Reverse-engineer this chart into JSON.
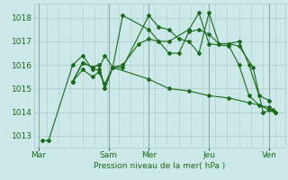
{
  "xlabel": "Pression niveau de la mer( hPa )",
  "bg_color": "#cce8e8",
  "grid_color": "#aacccc",
  "vline_color": "#88aaaa",
  "line_color": "#1a6b1a",
  "tick_label_color": "#1a6b1a",
  "axis_label_color": "#1a6b1a",
  "ylim": [
    1012.5,
    1018.6
  ],
  "yticks": [
    1013,
    1014,
    1015,
    1016,
    1017,
    1018
  ],
  "xlim": [
    -0.2,
    12.3
  ],
  "day_positions": [
    0.0,
    3.5,
    5.5,
    8.5,
    11.5
  ],
  "day_labels": [
    "Mar",
    "Sam",
    "Mer",
    "Jeu",
    "Ven"
  ],
  "vline_positions": [
    0.0,
    3.5,
    5.5,
    8.5,
    11.5
  ],
  "line1_x": [
    0.2,
    0.5,
    1.7,
    2.2,
    2.7,
    3.0,
    3.3,
    3.7,
    4.2,
    5.5,
    6.0,
    6.5,
    7.0,
    7.5,
    8.0,
    8.5,
    9.0,
    9.5,
    10.0,
    10.7,
    11.2,
    11.7
  ],
  "line1_y": [
    1012.8,
    1012.8,
    1016.0,
    1016.4,
    1015.8,
    1015.8,
    1016.4,
    1015.9,
    1015.9,
    1018.1,
    1017.6,
    1017.5,
    1017.1,
    1017.0,
    1016.5,
    1018.2,
    1016.9,
    1016.9,
    1016.8,
    1015.9,
    1014.0,
    1014.1
  ],
  "line2_x": [
    1.7,
    2.2,
    2.7,
    3.0,
    3.3,
    3.7,
    4.2,
    5.5,
    6.0,
    6.5,
    7.5,
    8.0,
    8.5,
    9.5,
    10.0,
    10.5,
    11.0,
    11.5,
    11.8
  ],
  "line2_y": [
    1015.3,
    1016.1,
    1015.9,
    1016.0,
    1015.0,
    1015.9,
    1018.1,
    1017.5,
    1017.0,
    1017.0,
    1017.5,
    1018.2,
    1016.9,
    1016.8,
    1016.0,
    1014.7,
    1014.3,
    1014.1,
    1014.0
  ],
  "line3_x": [
    1.7,
    2.2,
    2.7,
    3.0,
    3.3,
    3.7,
    4.2,
    5.0,
    5.5,
    6.0,
    6.5,
    7.0,
    7.5,
    8.0,
    8.5,
    9.0,
    9.5,
    10.0,
    10.5,
    11.0,
    11.5
  ],
  "line3_y": [
    1015.3,
    1016.1,
    1015.9,
    1016.0,
    1015.0,
    1015.9,
    1016.0,
    1016.9,
    1017.1,
    1017.0,
    1016.5,
    1016.5,
    1017.4,
    1017.5,
    1017.3,
    1016.9,
    1016.9,
    1017.0,
    1016.0,
    1014.7,
    1014.5
  ],
  "line4_x": [
    1.7,
    2.2,
    2.7,
    3.0,
    3.3,
    3.7,
    5.5,
    6.5,
    7.5,
    8.5,
    9.5,
    10.5,
    11.5,
    11.8
  ],
  "line4_y": [
    1015.3,
    1015.8,
    1015.5,
    1015.7,
    1015.2,
    1015.9,
    1015.4,
    1015.0,
    1014.9,
    1014.7,
    1014.6,
    1014.4,
    1014.2,
    1014.0
  ]
}
